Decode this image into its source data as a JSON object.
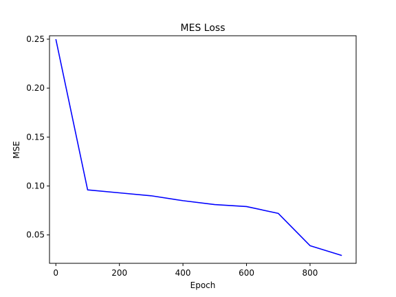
{
  "chart_data": {
    "type": "line",
    "title": "MES Loss",
    "xlabel": "Epoch",
    "ylabel": "MSE",
    "xlim": [
      -20,
      945
    ],
    "ylim": [
      0.021,
      0.2535
    ],
    "xticks": [
      0,
      200,
      400,
      600,
      800
    ],
    "yticks": [
      0.05,
      0.1,
      0.15,
      0.2,
      0.25
    ],
    "x_tick_labels": [
      "0",
      "200",
      "400",
      "600",
      "800"
    ],
    "y_tick_labels": [
      "0.05",
      "0.10",
      "0.15",
      "0.20",
      "0.25"
    ],
    "grid": false,
    "series": [
      {
        "color": "#0000ff",
        "x": [
          0,
          100,
          200,
          300,
          400,
          500,
          600,
          700,
          800,
          900
        ],
        "y": [
          0.25,
          0.096,
          0.093,
          0.09,
          0.085,
          0.081,
          0.079,
          0.072,
          0.039,
          0.029
        ]
      }
    ]
  }
}
